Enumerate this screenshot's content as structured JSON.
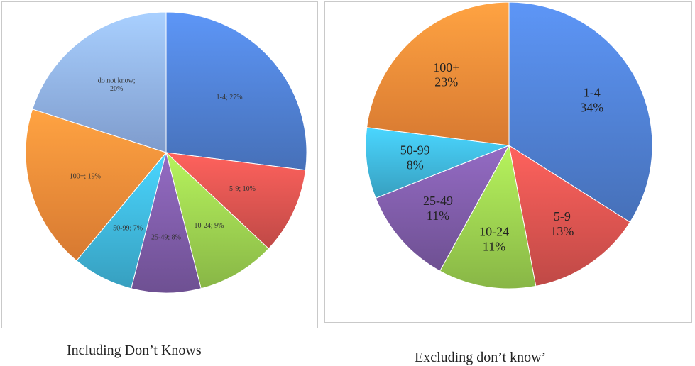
{
  "colors": {
    "slice_1": "#4f7fd1",
    "slice_2": "#d9534f",
    "slice_3": "#9bcf4f",
    "slice_4": "#7d5ba6",
    "slice_5": "#3fb5d9",
    "slice_6": "#f48a38",
    "slice_7": "#8fb0e8"
  },
  "chart_data": [
    {
      "type": "pie",
      "title": "Including Don’t Knows",
      "start": "12 o'clock, clockwise",
      "slices": [
        {
          "label": "1-4; 27%",
          "category": "1-4",
          "value": 27
        },
        {
          "label": "5-9; 10%",
          "category": "5-9",
          "value": 10
        },
        {
          "label": "10-24; 9%",
          "category": "10-24",
          "value": 9
        },
        {
          "label": "25-49; 8%",
          "category": "25-49",
          "value": 8
        },
        {
          "label": "50-99; 7%",
          "category": "50-99",
          "value": 7
        },
        {
          "label": "100+; 19%",
          "category": "100+",
          "value": 19
        },
        {
          "label": "do not know;\n20%",
          "category": "do not know",
          "value": 20
        }
      ]
    },
    {
      "type": "pie",
      "title": "Excluding don’t know’",
      "start": "12 o'clock, clockwise",
      "slices": [
        {
          "label": "1-4\n34%",
          "category": "1-4",
          "value": 34
        },
        {
          "label": "5-9\n13%",
          "category": "5-9",
          "value": 13
        },
        {
          "label": "10-24\n11%",
          "category": "10-24",
          "value": 11
        },
        {
          "label": "25-49\n11%",
          "category": "25-49",
          "value": 11
        },
        {
          "label": "50-99\n8%",
          "category": "50-99",
          "value": 8
        },
        {
          "label": "100+\n23%",
          "category": "100+",
          "value": 23
        }
      ]
    }
  ]
}
